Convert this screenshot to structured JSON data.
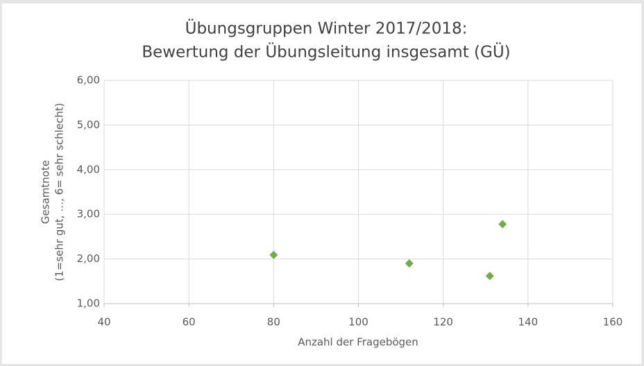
{
  "chart_data": {
    "type": "scatter",
    "title": [
      "Übungsgruppen Winter 2017/2018:",
      "Bewertung der Übungsleitung insgesamt (GÜ)"
    ],
    "xlabel": "Anzahl der Fragebögen",
    "ylabel": [
      "Gesamtnote",
      "(1=sehr gut, …, 6= sehr schlecht)"
    ],
    "x": [
      80,
      112,
      131,
      134
    ],
    "values": [
      2.09,
      1.9,
      1.62,
      2.78
    ],
    "color": "#70ad47",
    "xlim": [
      40,
      160
    ],
    "xticks": [
      40,
      60,
      80,
      100,
      120,
      140,
      160
    ],
    "ylim": [
      1,
      6
    ],
    "yticks": [
      {
        "value": 1,
        "label": "1,00"
      },
      {
        "value": 2,
        "label": "2,00"
      },
      {
        "value": 3,
        "label": "3,00"
      },
      {
        "value": 4,
        "label": "4,00"
      },
      {
        "value": 5,
        "label": "5,00"
      },
      {
        "value": 6,
        "label": "6,00"
      }
    ],
    "grid": true
  }
}
